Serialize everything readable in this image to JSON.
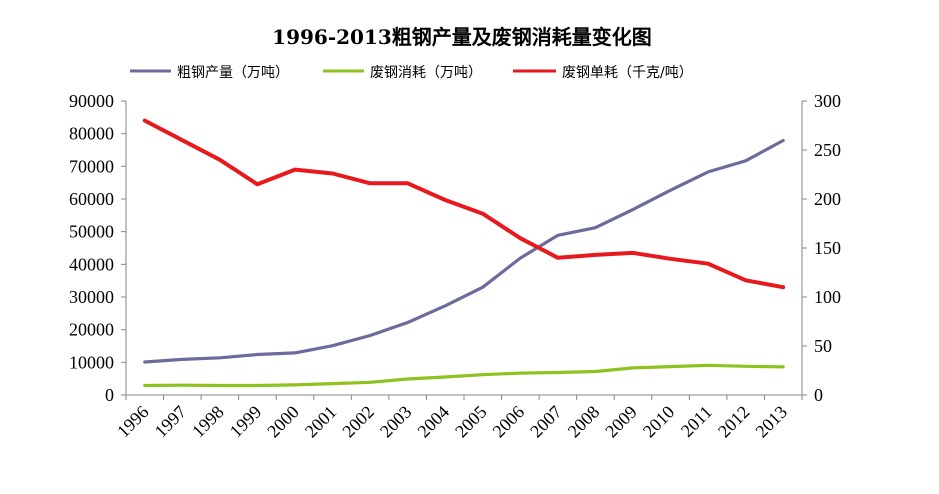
{
  "chart_data": {
    "type": "line",
    "title": "1996-2013粗钢产量及废钢消耗量变化图",
    "categories": [
      "1996",
      "1997",
      "1998",
      "1999",
      "2000",
      "2001",
      "2002",
      "2003",
      "2004",
      "2005",
      "2006",
      "2007",
      "2008",
      "2009",
      "2010",
      "2011",
      "2012",
      "2013"
    ],
    "series": [
      {
        "name": "粗钢产量（万吨）",
        "axis": "left",
        "color": "#6B6B9E",
        "values": [
          10100,
          10900,
          11400,
          12400,
          12900,
          15100,
          18200,
          22200,
          27300,
          33000,
          41900,
          48900,
          51200,
          56800,
          62700,
          68300,
          71700,
          77900
        ]
      },
      {
        "name": "废钢消耗（万吨）",
        "axis": "left",
        "color": "#8DC21F",
        "values": [
          2900,
          3000,
          2900,
          2900,
          3100,
          3500,
          3900,
          4900,
          5500,
          6200,
          6700,
          6900,
          7200,
          8300,
          8700,
          9100,
          8800,
          8600
        ]
      },
      {
        "name": "废钢单耗（千克/吨）",
        "axis": "right",
        "color": "#E8191C",
        "values": [
          280,
          260,
          240,
          215,
          230,
          226,
          216,
          216,
          199,
          185,
          160,
          140,
          143,
          145,
          139,
          134,
          117,
          110
        ]
      }
    ],
    "y_left": {
      "min": 0,
      "max": 90000,
      "step": 10000,
      "ticks": [
        "0",
        "10000",
        "20000",
        "30000",
        "40000",
        "50000",
        "60000",
        "70000",
        "80000",
        "90000"
      ]
    },
    "y_right": {
      "min": 0,
      "max": 300,
      "step": 50,
      "ticks": [
        "0",
        "50",
        "100",
        "150",
        "200",
        "250",
        "300"
      ]
    },
    "legend_position": "top",
    "grid": false
  }
}
